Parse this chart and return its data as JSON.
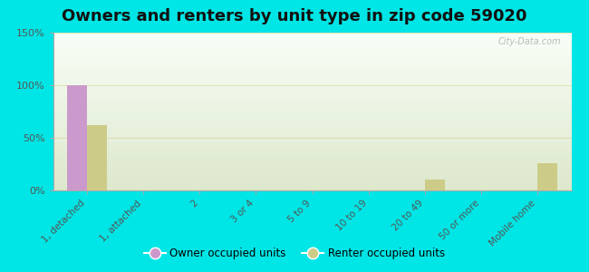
{
  "title": "Owners and renters by unit type in zip code 59020",
  "categories": [
    "1, detached",
    "1, attached",
    "2",
    "3 or 4",
    "5 to 9",
    "10 to 19",
    "20 to 49",
    "50 or more",
    "Mobile home"
  ],
  "owner_values": [
    100,
    0,
    0,
    0,
    0,
    0,
    0,
    0,
    0
  ],
  "renter_values": [
    62,
    0,
    0,
    0,
    0,
    0,
    10,
    0,
    26
  ],
  "owner_color": "#cc99cc",
  "renter_color": "#cccc88",
  "ylim": [
    0,
    150
  ],
  "yticks": [
    0,
    50,
    100,
    150
  ],
  "ytick_labels": [
    "0%",
    "50%",
    "100%",
    "150%"
  ],
  "background_color": "#00e5e5",
  "plot_bg_top": "#f8fff8",
  "plot_bg_bottom": "#dde8cc",
  "bar_width": 0.35,
  "title_fontsize": 13,
  "watermark": "City-Data.com"
}
